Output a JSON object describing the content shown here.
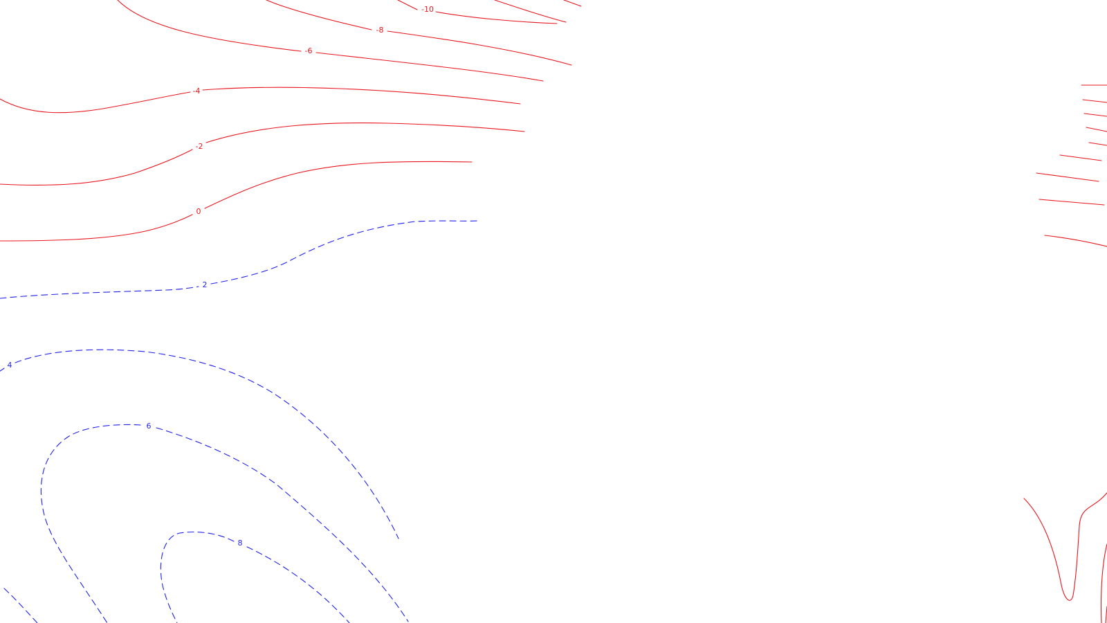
{
  "colors": {
    "negative_contours": "#e8141c",
    "positive_contours": "#1f1fe6",
    "background": "#ffffff"
  },
  "styles": {
    "negative_contours": "solid",
    "positive_contours": "dashed"
  },
  "contour_labels": {
    "minus_10": "-10",
    "minus_8": "-8",
    "minus_6": "-6",
    "minus_4": "-4",
    "minus_2": "-2",
    "zero": "0",
    "plus_2": "2",
    "plus_4": "4",
    "plus_6": "6",
    "plus_8": "8"
  }
}
